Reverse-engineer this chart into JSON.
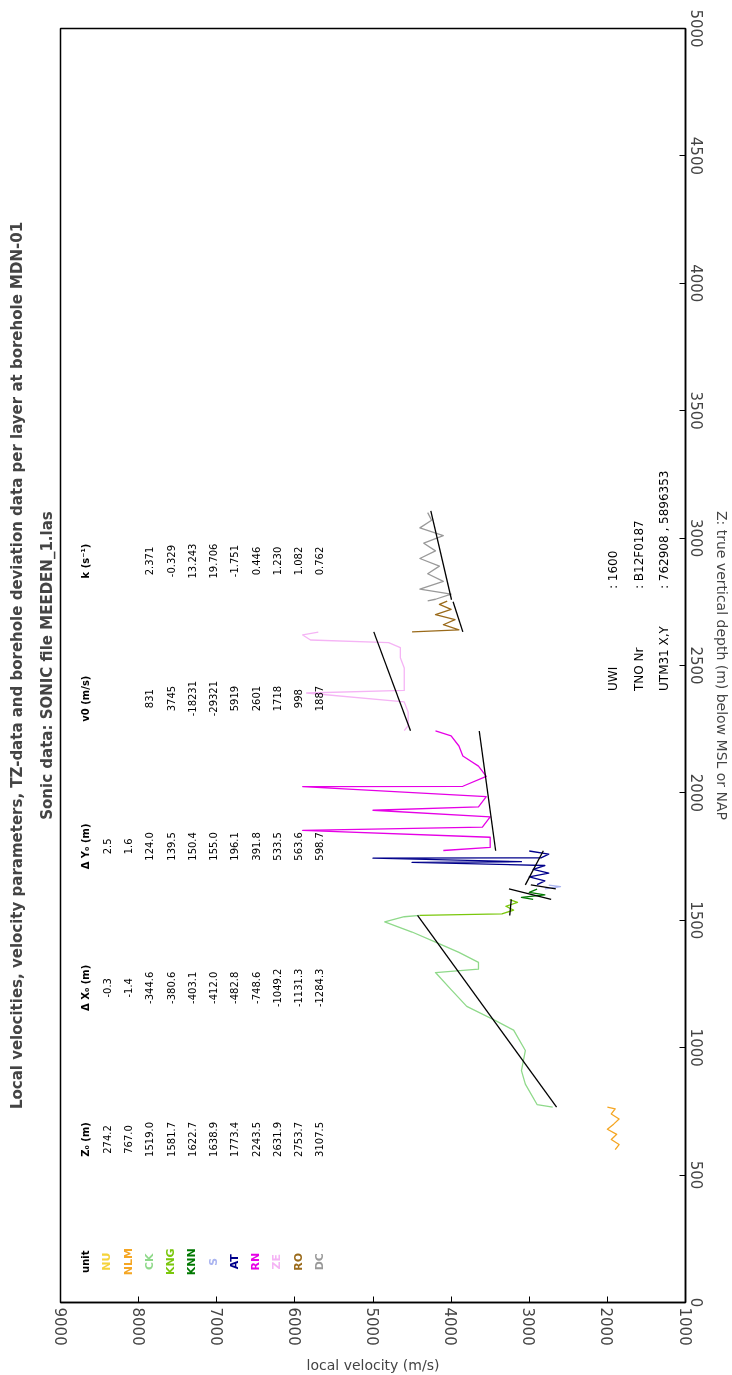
{
  "chart_data": {
    "type": "line",
    "title": "Local velocities, velocity parameters, TZ-data and borehole deviation data per layer at borehole MDN-01",
    "subtitle": "Sonic data: SONIC file MEEDEN_1.las",
    "xlabel": "local velocity (m/s)",
    "ylabel": "Z: true vertical depth (m) below MSL or NAP",
    "xlim": [
      9000,
      1000
    ],
    "ylim": [
      0,
      5000
    ],
    "xticks": [
      9000,
      8000,
      7000,
      6000,
      5000,
      4000,
      3000,
      2000,
      1000
    ],
    "yticks": [
      0,
      500,
      1000,
      1500,
      2000,
      2500,
      3000,
      3500,
      4000,
      4500,
      5000
    ],
    "grid": false,
    "legend": "bottom left",
    "legend_title": "unit",
    "annotations": [
      "Z₀ (m)  Δ X₀ (m)  Δ Y₀ (m)  v0 (m/s)  k (s⁻¹)",
      "274.2  -0.3  2.5",
      "767.0  -1.4  1.6",
      "1519.0  -344.6  124.0  831  2.371",
      "1581.7  -380.6  139.5  3745  -0.329",
      "1622.7  -403.1  150.4  -18231  13.243",
      "1638.9  -412.0  155.0  -29321  19.706",
      "1773.4  -482.8  196.1  5919  -1.751",
      "2243.5  -748.6  391.8  2601  0.446",
      "2631.9  -1049.2  533.5  1718  1.230",
      "2753.7  -1131.3  563.6  998  1.082",
      "3107.5  -1284.3  598.7  1887  0.762",
      "UWI  : 1600",
      "TNO Nr  : B12F0187",
      "UTM31 X,Y  : 762908 , 5896353"
    ],
    "series": [
      {
        "name": "NU",
        "color": "#f5d33a"
      },
      {
        "name": "NLM",
        "color": "#f5a623",
        "values": [
          600,
          620,
          640,
          660,
          680,
          700,
          720,
          740,
          760,
          767
        ],
        "x": [
          1900,
          1850,
          1950,
          1880,
          2000,
          1920,
          1850,
          1950,
          1900,
          2000
        ]
      },
      {
        "name": "CK",
        "color": "#8fd98a",
        "values": [
          767,
          777,
          857,
          910,
          989,
          1069,
          1109,
          1162,
          1228,
          1295,
          1308,
          1335,
          1374,
          1414,
          1454,
          1494,
          1514,
          1519
        ],
        "x": [
          2700,
          2900,
          3050,
          3100,
          3050,
          3200,
          3450,
          3800,
          4000,
          4200,
          3650,
          3650,
          3900,
          4200,
          4500,
          4850,
          4600,
          4400
        ]
      },
      {
        "name": "KNG",
        "color": "#7ac70c",
        "values": [
          1519,
          1525,
          1540,
          1555,
          1570,
          1581
        ],
        "x": [
          4400,
          3350,
          3200,
          3300,
          3150,
          3250
        ]
      },
      {
        "name": "KNN",
        "color": "#007800",
        "values": [
          1582,
          1590,
          1600,
          1610,
          1622
        ],
        "x": [
          2950,
          3100,
          2800,
          3000,
          2900
        ]
      },
      {
        "name": "S",
        "color": "#aab4f0",
        "values": [
          1623,
          1632,
          1638
        ],
        "x": [
          2800,
          2600,
          2750
        ]
      },
      {
        "name": "AT",
        "color": "#00008b",
        "values": [
          1640,
          1655,
          1670,
          1685,
          1700,
          1715,
          1727,
          1730,
          1744,
          1745,
          1760,
          1772
        ],
        "x": [
          2900,
          2800,
          3000,
          2750,
          2950,
          2800,
          4500,
          3100,
          5000,
          2850,
          2750,
          3000
        ]
      },
      {
        "name": "RN",
        "color": "#e600e6",
        "values": [
          1774,
          1786,
          1826,
          1853,
          1866,
          1906,
          1932,
          1945,
          1985,
          2025,
          2026,
          2065,
          2105,
          2145,
          2184,
          2224,
          2243
        ],
        "x": [
          4100,
          3500,
          3500,
          5900,
          3600,
          3500,
          5000,
          3650,
          3550,
          5900,
          3850,
          3550,
          3650,
          3850,
          3900,
          4000,
          4200
        ]
      },
      {
        "name": "ZE",
        "color": "#f5b4f5",
        "values": [
          2244,
          2264,
          2317,
          2357,
          2392,
          2402,
          2437,
          2490,
          2530,
          2570,
          2590,
          2600,
          2620,
          2631
        ],
        "x": [
          4600,
          4550,
          4550,
          4600,
          5850,
          4600,
          4600,
          4600,
          4650,
          4650,
          4800,
          5800,
          5900,
          5700
        ]
      },
      {
        "name": "RO",
        "color": "#9a6a1a",
        "values": [
          2632,
          2640,
          2660,
          2680,
          2700,
          2720,
          2740,
          2753
        ],
        "x": [
          4500,
          3900,
          4100,
          3950,
          4200,
          4000,
          4150,
          4050
        ]
      },
      {
        "name": "DC",
        "color": "#999999",
        "values": [
          2754,
          2760,
          2780,
          2800,
          2830,
          2860,
          2890,
          2920,
          2950,
          2980,
          3010,
          3040,
          3070,
          3100
        ],
        "x": [
          4300,
          4200,
          4000,
          4400,
          4100,
          4300,
          4150,
          4400,
          4200,
          4350,
          4100,
          4400,
          4250,
          4300
        ]
      },
      {
        "color": "#000000",
        "values": [
          767,
          1519
        ],
        "x": [
          2650,
          4430
        ]
      },
      {
        "color": "#000000",
        "values": [
          1519,
          1582
        ],
        "x": [
          3250,
          3230
        ]
      },
      {
        "color": "#000000",
        "values": [
          1582,
          1623
        ],
        "x": [
          2720,
          3260
        ]
      },
      {
        "color": "#000000",
        "values": [
          1623,
          1639
        ],
        "x": [
          2660,
          2980
        ]
      },
      {
        "color": "#000000",
        "values": [
          1639,
          1773
        ],
        "x": [
          3050,
          2820
        ]
      },
      {
        "color": "#000000",
        "values": [
          1773,
          2243
        ],
        "x": [
          3430,
          3640
        ]
      },
      {
        "color": "#000000",
        "values": [
          2244,
          2632
        ],
        "x": [
          4520,
          4990
        ]
      },
      {
        "color": "#000000",
        "values": [
          2632,
          2750
        ],
        "x": [
          3850,
          3975
        ]
      },
      {
        "color": "#000000",
        "values": [
          2758,
          3107
        ],
        "x": [
          3995,
          4260
        ]
      }
    ]
  }
}
